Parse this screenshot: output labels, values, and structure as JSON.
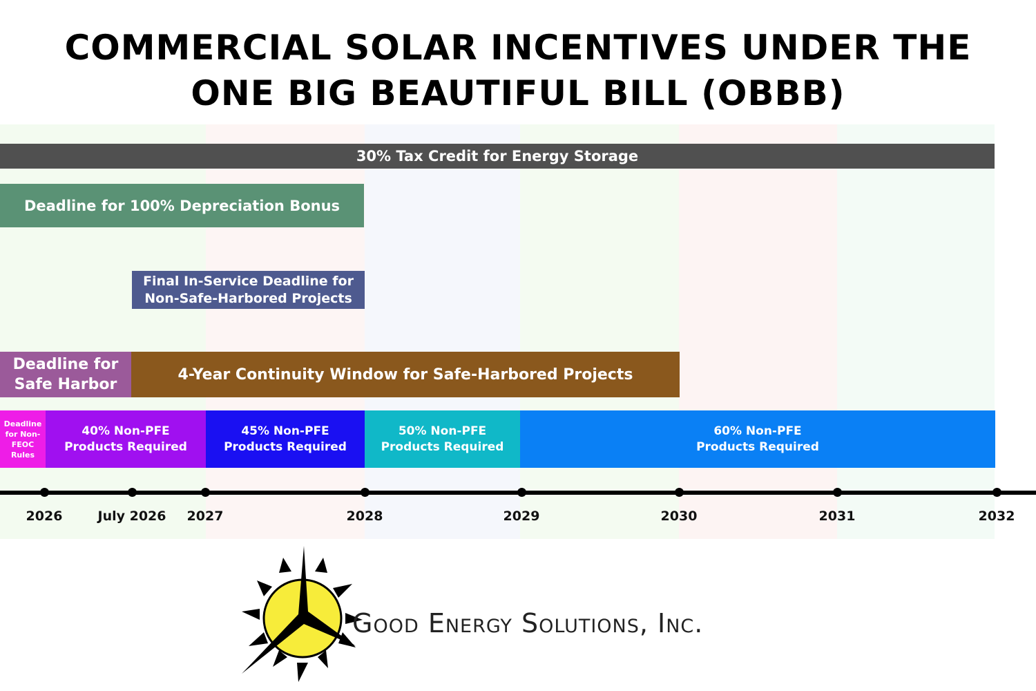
{
  "header": {
    "title_lines": [
      "COMMERCIAL SOLAR INCENTIVES UNDER THE",
      "ONE BIG BEAUTIFUL BILL (OBBB)"
    ]
  },
  "bars": [
    {
      "lines": [
        "30% Tax Credit for Energy Storage"
      ]
    },
    {
      "lines": [
        "Deadline for 100% Depreciation Bonus"
      ]
    },
    {
      "lines": [
        "Final In-Service Deadline for",
        "Non-Safe-Harbored Projects"
      ]
    },
    {
      "lines": [
        "Deadline for",
        "Safe Harbor"
      ]
    },
    {
      "lines": [
        "4-Year Continuity Window for Safe-Harbored Projects"
      ]
    },
    {
      "lines": [
        "Deadline",
        "for Non-",
        "FEOC",
        "Rules"
      ]
    },
    {
      "lines": [
        "40% Non-PFE",
        "Products Required"
      ]
    },
    {
      "lines": [
        "45% Non-PFE",
        "Products Required"
      ]
    },
    {
      "lines": [
        "50% Non-PFE",
        "Products Required"
      ]
    },
    {
      "lines": [
        "60% Non-PFE",
        "Products Required"
      ]
    }
  ],
  "timeline": {
    "labels": [
      "2026",
      "July 2026",
      "2027",
      "2028",
      "2029",
      "2030",
      "2031",
      "2032"
    ]
  },
  "logo": {
    "text": "Good Energy Solutions, Inc."
  }
}
